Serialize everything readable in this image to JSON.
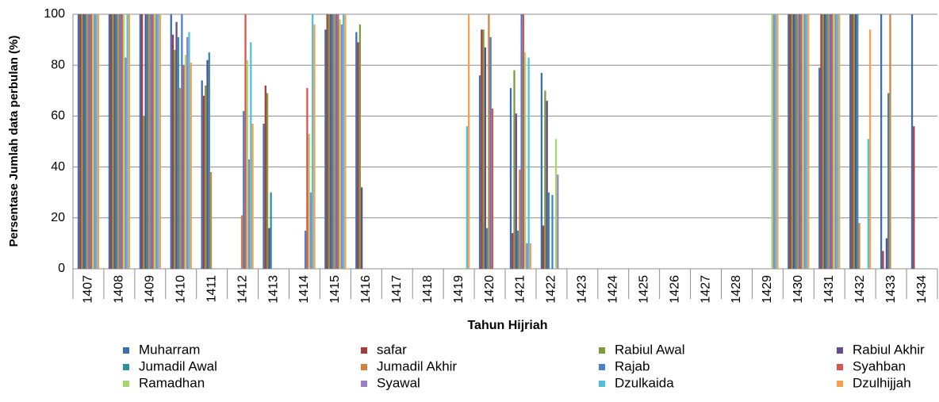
{
  "chart_data": {
    "type": "bar",
    "y_label": "Persentase Jumlah data perbulan (%)",
    "x_label": "Tahun Hijriah",
    "categories": [
      "1407",
      "1408",
      "1409",
      "1410",
      "1411",
      "1412",
      "1413",
      "1414",
      "1415",
      "1416",
      "1417",
      "1418",
      "1419",
      "1420",
      "1421",
      "1422",
      "1423",
      "1424",
      "1425",
      "1426",
      "1427",
      "1428",
      "1429",
      "1430",
      "1431",
      "1432",
      "1433",
      "1434"
    ],
    "ylim": [
      0,
      100
    ],
    "yticks": [
      0,
      20,
      40,
      60,
      80,
      100
    ],
    "grid": true,
    "series": [
      {
        "name": "Muharram",
        "color": "#3d6cb3",
        "values": [
          100,
          100,
          100,
          100,
          74,
          0,
          57,
          0,
          94,
          93,
          0,
          0,
          0,
          76,
          71,
          77,
          0,
          0,
          0,
          0,
          0,
          0,
          0,
          100,
          79,
          100,
          100,
          100
        ]
      },
      {
        "name": "safar",
        "color": "#a63b3b",
        "values": [
          100,
          100,
          100,
          92,
          68,
          0,
          72,
          0,
          100,
          89,
          0,
          0,
          0,
          94,
          14,
          17,
          0,
          0,
          0,
          0,
          0,
          0,
          0,
          100,
          100,
          100,
          7,
          56
        ]
      },
      {
        "name": "Rabiul  Awal",
        "color": "#7c9a3e",
        "values": [
          100,
          100,
          60,
          86,
          72,
          0,
          69,
          0,
          100,
          96,
          0,
          0,
          0,
          94,
          78,
          70,
          0,
          0,
          0,
          0,
          0,
          0,
          0,
          100,
          100,
          100,
          0,
          0
        ]
      },
      {
        "name": "Rabiul Akhir",
        "color": "#664b8c",
        "values": [
          100,
          100,
          100,
          97,
          82,
          0,
          16,
          0,
          100,
          32,
          0,
          0,
          0,
          87,
          61,
          66,
          0,
          0,
          0,
          0,
          0,
          0,
          0,
          100,
          100,
          100,
          12,
          0
        ]
      },
      {
        "name": "Jumadil Awal",
        "color": "#2e8ea3",
        "values": [
          100,
          100,
          100,
          91,
          85,
          0,
          30,
          0,
          100,
          0,
          0,
          0,
          0,
          16,
          15,
          30,
          0,
          0,
          0,
          0,
          0,
          0,
          0,
          100,
          100,
          100,
          69,
          0
        ]
      },
      {
        "name": "Jumadil Akhir",
        "color": "#d6803a",
        "values": [
          100,
          100,
          100,
          71,
          38,
          21,
          0,
          0,
          100,
          0,
          0,
          0,
          0,
          100,
          39,
          0,
          0,
          0,
          0,
          0,
          0,
          0,
          0,
          100,
          100,
          18,
          100,
          0
        ]
      },
      {
        "name": "Rajab",
        "color": "#4a7fd0",
        "values": [
          100,
          100,
          100,
          100,
          0,
          62,
          0,
          15,
          100,
          0,
          0,
          0,
          0,
          91,
          100,
          29,
          0,
          0,
          0,
          0,
          0,
          0,
          0,
          100,
          100,
          0,
          0,
          0
        ]
      },
      {
        "name": "Syahban",
        "color": "#d9534f",
        "values": [
          100,
          100,
          100,
          80,
          0,
          100,
          0,
          71,
          100,
          0,
          0,
          0,
          0,
          63,
          100,
          0,
          0,
          0,
          0,
          0,
          0,
          0,
          0,
          100,
          100,
          0,
          0,
          0
        ]
      },
      {
        "name": "Ramadhan",
        "color": "#a6d96a",
        "values": [
          100,
          100,
          100,
          84,
          0,
          82,
          0,
          53,
          98,
          0,
          0,
          0,
          0,
          0,
          85,
          51,
          0,
          0,
          0,
          0,
          0,
          0,
          100,
          100,
          100,
          0,
          0,
          0
        ]
      },
      {
        "name": "Syawal",
        "color": "#9c7fc2",
        "values": [
          100,
          83,
          100,
          91,
          0,
          43,
          0,
          30,
          96,
          0,
          0,
          0,
          0,
          0,
          10,
          37,
          0,
          0,
          0,
          0,
          0,
          0,
          100,
          100,
          100,
          0,
          0,
          0
        ]
      },
      {
        "name": "Dzulkaida",
        "color": "#4fc0de",
        "values": [
          100,
          100,
          100,
          93,
          0,
          89,
          0,
          100,
          100,
          0,
          0,
          0,
          56,
          0,
          83,
          0,
          0,
          0,
          0,
          0,
          0,
          0,
          100,
          100,
          100,
          51,
          0,
          0
        ]
      },
      {
        "name": "Dzulhijjah",
        "color": "#f9a04a",
        "values": [
          100,
          100,
          100,
          81,
          0,
          57,
          0,
          96,
          100,
          0,
          0,
          0,
          100,
          0,
          10,
          0,
          0,
          0,
          0,
          0,
          0,
          0,
          100,
          100,
          100,
          94,
          0,
          0
        ]
      }
    ]
  }
}
